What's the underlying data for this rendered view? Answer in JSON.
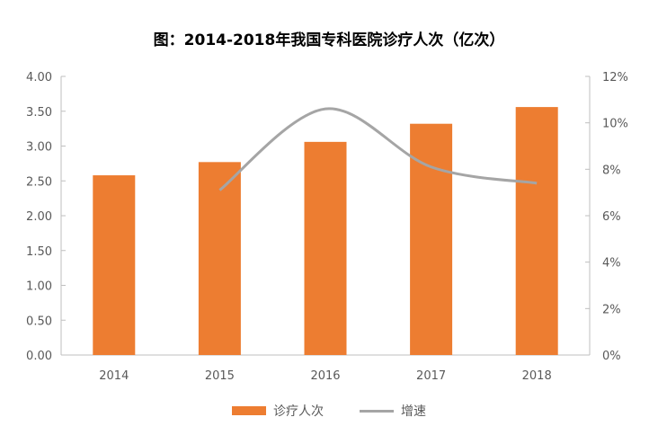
{
  "chart_data": {
    "type": "bar",
    "title": "图：2014-2018年我国专科医院诊疗人次（亿次）",
    "categories": [
      "2014",
      "2015",
      "2016",
      "2017",
      "2018"
    ],
    "series": [
      {
        "name": "诊疗人次",
        "type": "bar",
        "axis": "left",
        "color": "#ED7D31",
        "values": [
          2.58,
          2.77,
          3.06,
          3.32,
          3.56
        ]
      },
      {
        "name": "增速",
        "type": "line",
        "axis": "right",
        "color": "#A5A5A5",
        "values": [
          null,
          7.1,
          10.6,
          8.1,
          7.4
        ]
      }
    ],
    "yleft": {
      "ylim": [
        0,
        4
      ],
      "ticks": [
        "0.00",
        "0.50",
        "1.00",
        "1.50",
        "2.00",
        "2.50",
        "3.00",
        "3.50",
        "4.00"
      ]
    },
    "yright": {
      "ylim": [
        0,
        12
      ],
      "ticks": [
        "0%",
        "2%",
        "4%",
        "6%",
        "8%",
        "10%",
        "12%"
      ]
    },
    "grid": false,
    "legend": "bottom"
  }
}
